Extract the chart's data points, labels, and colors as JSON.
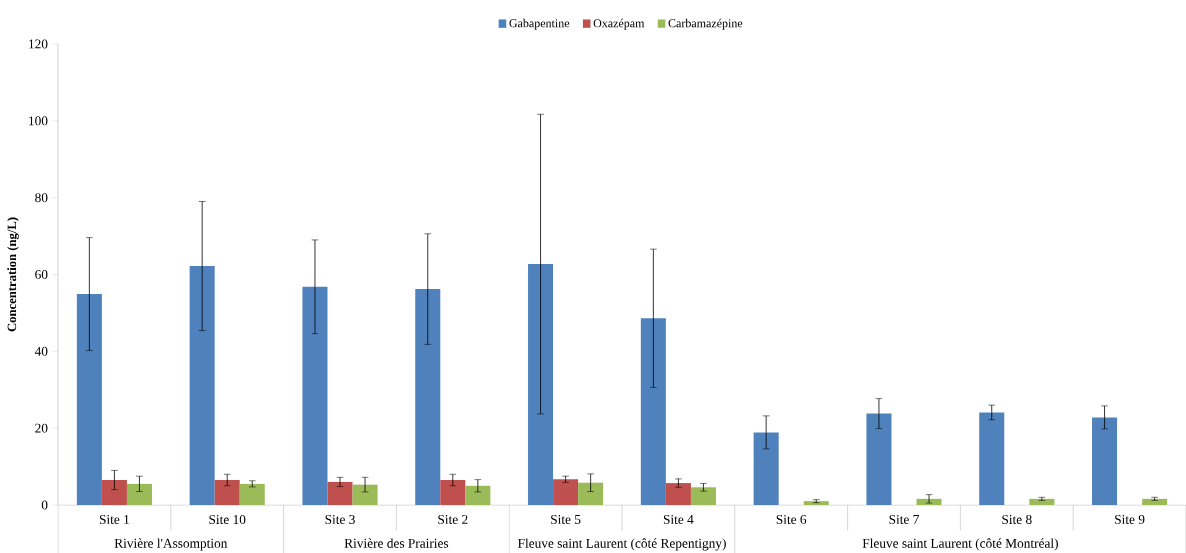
{
  "chart_data": {
    "type": "bar",
    "ylabel": "Concentration (ng/L)",
    "categories": [
      "Site 1",
      "Site 10",
      "Site 3",
      "Site 2",
      "Site 5",
      "Site 4",
      "Site 6",
      "Site 7",
      "Site 8",
      "Site 9"
    ],
    "series": [
      {
        "name": "Gabapentine",
        "color": "#4f81bd",
        "values": [
          54.9,
          62.2,
          56.8,
          56.2,
          62.7,
          48.6,
          18.9,
          23.8,
          24.1,
          22.8
        ],
        "errors": [
          14.7,
          16.8,
          12.2,
          14.4,
          39,
          18,
          4.3,
          3.9,
          1.9,
          3
        ]
      },
      {
        "name": "Oxazépam",
        "color": "#c0504d",
        "values": [
          6.5,
          6.5,
          6,
          6.5,
          6.7,
          5.7,
          null,
          null,
          null,
          null
        ],
        "errors": [
          2.5,
          1.5,
          1.2,
          1.5,
          0.8,
          1.1,
          null,
          null,
          null,
          null
        ]
      },
      {
        "name": "Carbamazépine",
        "color": "#9bbb59",
        "values": [
          5.5,
          5.5,
          5.3,
          5,
          5.8,
          4.6,
          1,
          1.6,
          1.6,
          1.6
        ],
        "errors": [
          2,
          0.8,
          1.9,
          1.6,
          2.3,
          1,
          0.4,
          1.1,
          0.4,
          0.4
        ]
      }
    ],
    "annotations": [
      "Rivière l'Assomption",
      "Rivière des Prairies",
      "Fleuve saint Laurent (côté Repentigny)",
      "Fleuve saint Laurent (côté Montréal)"
    ],
    "ylim": [
      0,
      120
    ],
    "yticks": [
      0,
      20,
      40,
      60,
      80,
      100,
      120
    ],
    "legend": "top",
    "grid": false
  }
}
